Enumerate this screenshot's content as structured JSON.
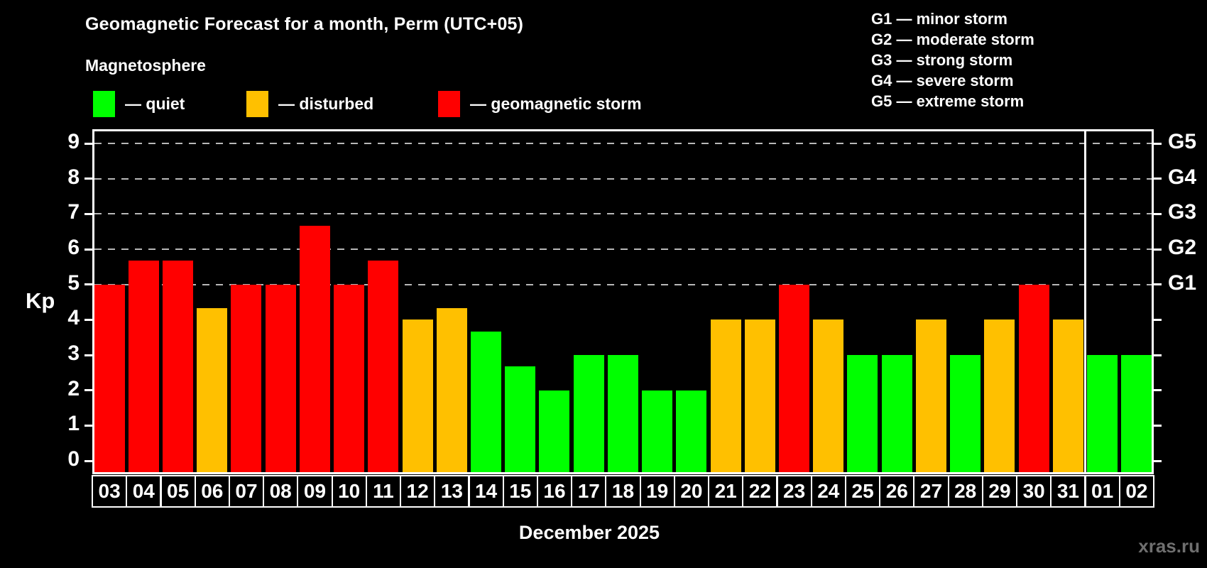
{
  "header": {
    "title": "Geomagnetic Forecast for a month, Perm (UTC+05)",
    "subtitle": "Magnetosphere"
  },
  "legend": {
    "items": [
      {
        "name": "quiet",
        "label": "— quiet",
        "color": "#00ff00"
      },
      {
        "name": "disturbed",
        "label": "— disturbed",
        "color": "#ffc000"
      },
      {
        "name": "storm",
        "label": "— geomagnetic storm",
        "color": "#ff0000"
      }
    ]
  },
  "storm_scale_legend": {
    "lines": [
      "G1 — minor storm",
      "G2 — moderate storm",
      "G3 — strong storm",
      "G4 — severe storm",
      "G5 — extreme storm"
    ]
  },
  "chart_data": {
    "type": "bar",
    "title": "Geomagnetic Forecast for a month, Perm (UTC+05)",
    "xlabel": "December 2025",
    "ylabel": "Kp",
    "ylim": [
      0,
      9
    ],
    "yticks": [
      0,
      1,
      2,
      3,
      4,
      5,
      6,
      7,
      8,
      9
    ],
    "gridlines_at": [
      5,
      6,
      7,
      8,
      9
    ],
    "grid": "dashed horizontal at storm levels only",
    "right_axis_labels": [
      {
        "label": "G1",
        "kp": 5
      },
      {
        "label": "G2",
        "kp": 6
      },
      {
        "label": "G3",
        "kp": 7
      },
      {
        "label": "G4",
        "kp": 8
      },
      {
        "label": "G5",
        "kp": 9
      }
    ],
    "categories": [
      "03",
      "04",
      "05",
      "06",
      "07",
      "08",
      "09",
      "10",
      "11",
      "12",
      "13",
      "14",
      "15",
      "16",
      "17",
      "18",
      "19",
      "20",
      "21",
      "22",
      "23",
      "24",
      "25",
      "26",
      "27",
      "28",
      "29",
      "30",
      "31",
      "01",
      "02"
    ],
    "values": [
      5,
      5.67,
      5.67,
      4.33,
      5,
      5,
      6.67,
      5,
      5.67,
      4,
      4.33,
      3.67,
      2.67,
      2,
      3,
      3,
      2,
      2,
      4,
      4,
      5,
      4,
      3,
      3,
      4,
      3,
      4,
      5,
      4,
      3,
      3
    ],
    "statuses": [
      "storm",
      "storm",
      "storm",
      "disturbed",
      "storm",
      "storm",
      "storm",
      "storm",
      "storm",
      "disturbed",
      "disturbed",
      "quiet",
      "quiet",
      "quiet",
      "quiet",
      "quiet",
      "quiet",
      "quiet",
      "disturbed",
      "disturbed",
      "storm",
      "disturbed",
      "quiet",
      "quiet",
      "disturbed",
      "quiet",
      "disturbed",
      "storm",
      "disturbed",
      "quiet",
      "quiet"
    ],
    "status_colors": {
      "quiet": "#00ff00",
      "disturbed": "#ffc000",
      "storm": "#ff0000"
    },
    "month_divider_after_category": "31",
    "legend_position": "top-left and top-right"
  },
  "footer": {
    "xlabel": "December 2025",
    "watermark": "xras.ru"
  }
}
